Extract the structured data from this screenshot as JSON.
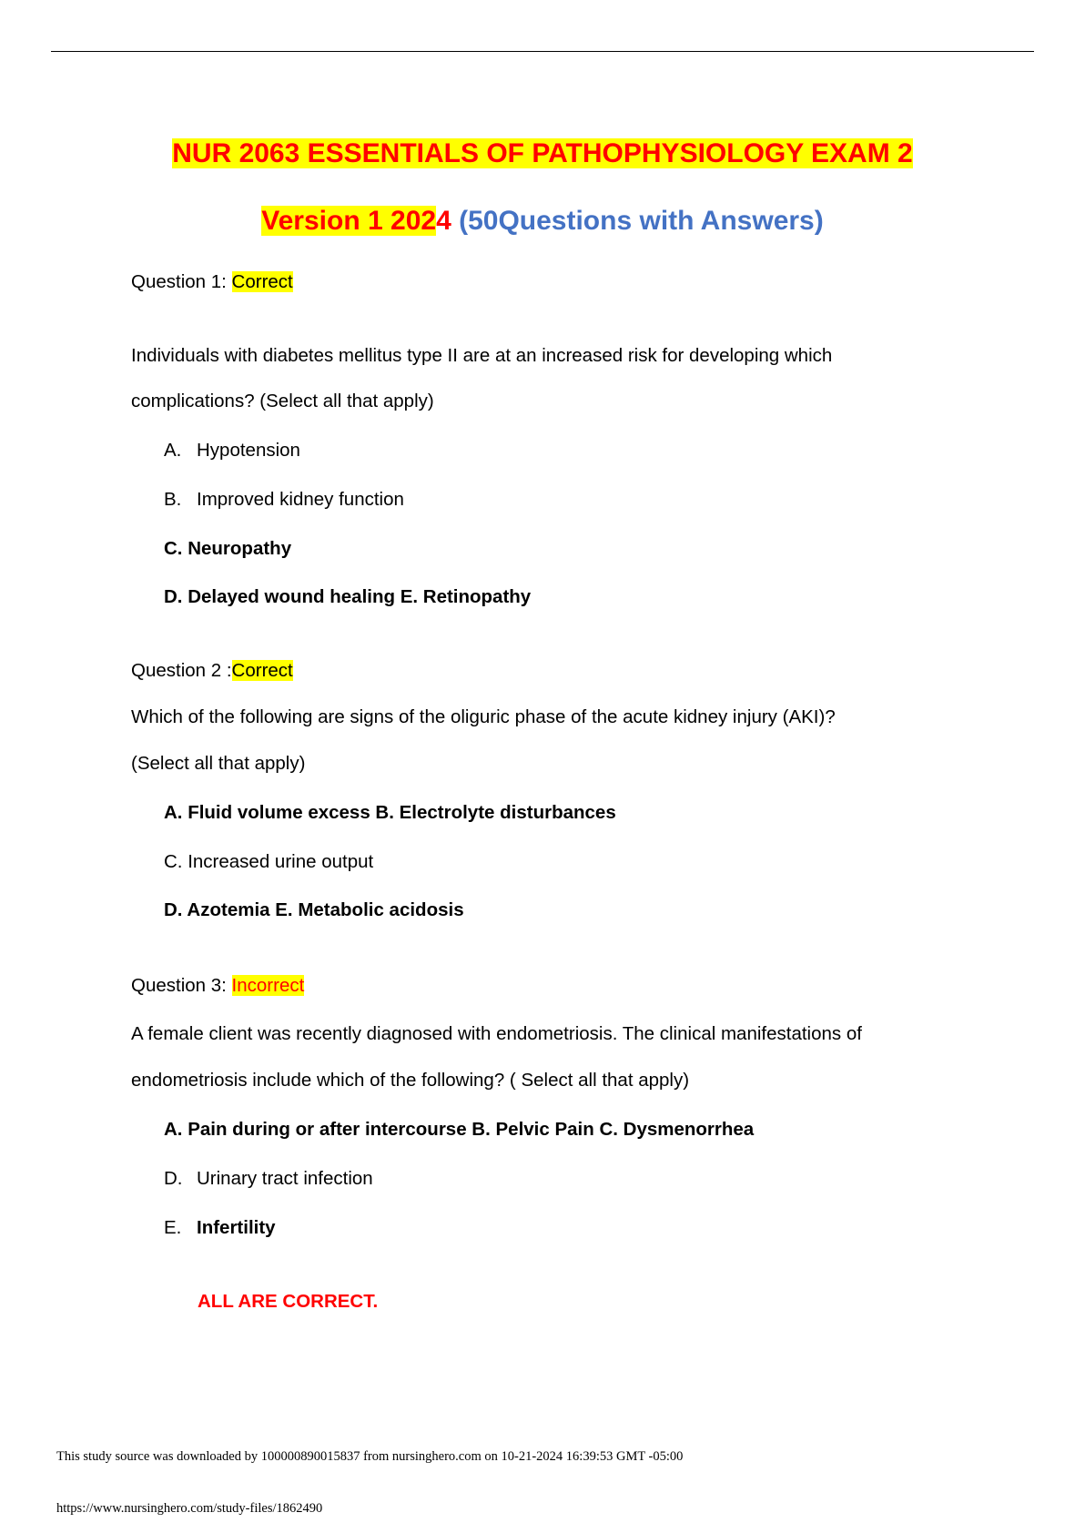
{
  "header": {
    "title_line1": "NUR 2063 ESSENTIALS OF PATHOPHYSIOLOGY EXAM 2",
    "title_line2_a": "Version 1 202",
    "title_line2_b": "4",
    "title_line2_c": "(50Questions with Answers)"
  },
  "questions": [
    {
      "label": "Question 1:",
      "status": "Correct",
      "text_lines": [
        "Individuals with diabetes mellitus type II are at an increased risk for developing which",
        "complications? (Select all that apply)"
      ],
      "options": [
        {
          "letter": "A.",
          "text": "Hypotension"
        },
        {
          "letter": "B.",
          "text": "Improved kidney function"
        }
      ],
      "bold_lines": [
        "C. Neuropathy",
        "D. Delayed wound healing E. Retinopathy"
      ]
    },
    {
      "label": "Question 2 :",
      "status": "Correct",
      "text_lines": [
        "Which of the following are signs of the oliguric phase of the acute kidney injury (AKI)?",
        "(Select all that apply)"
      ],
      "lines": [
        "A. Fluid volume excess B. Electrolyte disturbances",
        "C. Increased urine output",
        "D. Azotemia E. Metabolic acidosis"
      ]
    },
    {
      "label": "Question 3:",
      "status": "Incorrect",
      "text_lines": [
        "A female client was recently diagnosed with endometriosis. The clinical manifestations of",
        "endometriosis include which of the following? ( Select all that apply)"
      ],
      "bold_line": "A. Pain during or after intercourse B. Pelvic Pain C. Dysmenorrhea",
      "options": [
        {
          "letter": "D.",
          "text": "Urinary tract infection"
        },
        {
          "letter": "E.",
          "text": "Infertility"
        }
      ],
      "note": "ALL ARE CORRECT."
    }
  ],
  "footer": {
    "source": "This study source was downloaded by 100000890015837 from nursinghero.com on 10-21-2024 16:39:53 GMT -05:00",
    "url": "https://www.nursinghero.com/study-files/1862490"
  }
}
